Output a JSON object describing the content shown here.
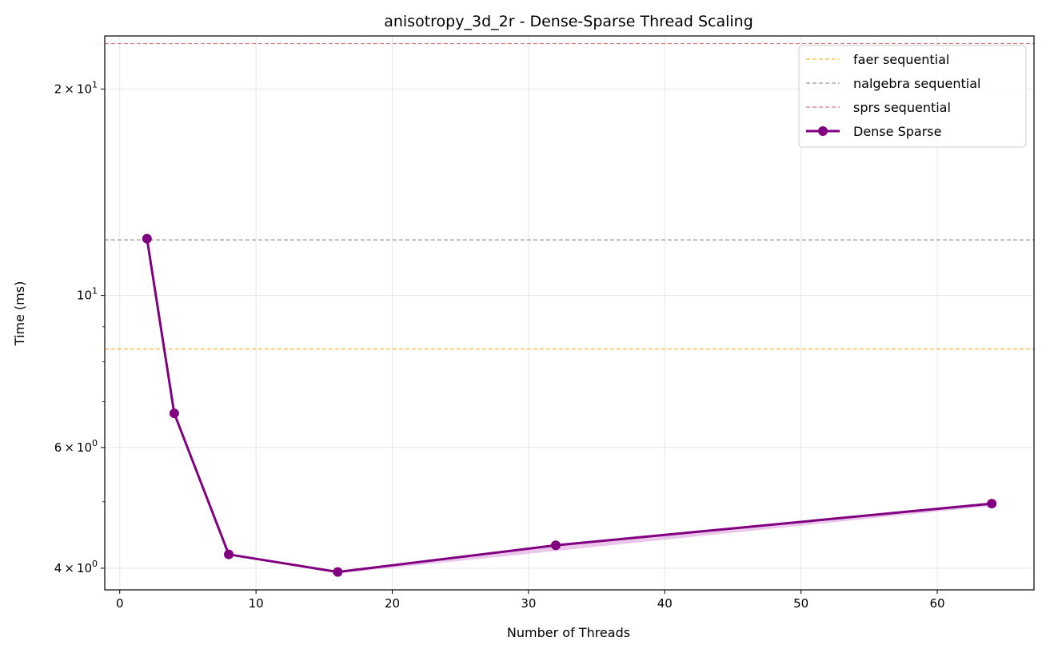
{
  "chart_data": {
    "type": "line",
    "title": "anisotropy_3d_2r - Dense-Sparse Thread Scaling",
    "xlabel": "Number of Threads",
    "ylabel": "Time (ms)",
    "xlim": [
      -1.1,
      67.1
    ],
    "ylim": [
      3.72,
      23.9
    ],
    "yscale": "log",
    "grid": true,
    "legend_position": "top-right",
    "x_ticks": [
      0,
      10,
      20,
      30,
      40,
      50,
      60
    ],
    "x_tick_labels": [
      "0",
      "10",
      "20",
      "30",
      "40",
      "50",
      "60"
    ],
    "y_major_ticks": [
      {
        "value": 4,
        "mantissa": "4",
        "exponent": "0"
      },
      {
        "value": 6,
        "mantissa": "6",
        "exponent": "0"
      },
      {
        "value": 10,
        "mantissa": "",
        "exponent": "1"
      },
      {
        "value": 20,
        "mantissa": "2",
        "exponent": "1"
      }
    ],
    "y_minor_ticks": [
      5,
      7,
      8,
      9
    ],
    "reference_lines": [
      {
        "name": "faer sequential",
        "value": 8.35,
        "color": "#FFA500"
      },
      {
        "name": "nalgebra sequential",
        "value": 12.05,
        "color": "#808080"
      },
      {
        "name": "sprs sequential",
        "value": 23.3,
        "color": "#CD5C5C"
      }
    ],
    "series": [
      {
        "name": "Dense Sparse",
        "color": "#800080",
        "band_color": "#DDA0DD",
        "x": [
          2,
          4,
          8,
          16,
          32,
          64
        ],
        "values": [
          12.1,
          6.73,
          4.19,
          3.95,
          4.32,
          4.97
        ],
        "lower": [
          12.1,
          6.73,
          4.19,
          3.93,
          4.24,
          4.93
        ],
        "upper": [
          12.1,
          6.73,
          4.19,
          3.95,
          4.34,
          4.99
        ]
      }
    ]
  }
}
